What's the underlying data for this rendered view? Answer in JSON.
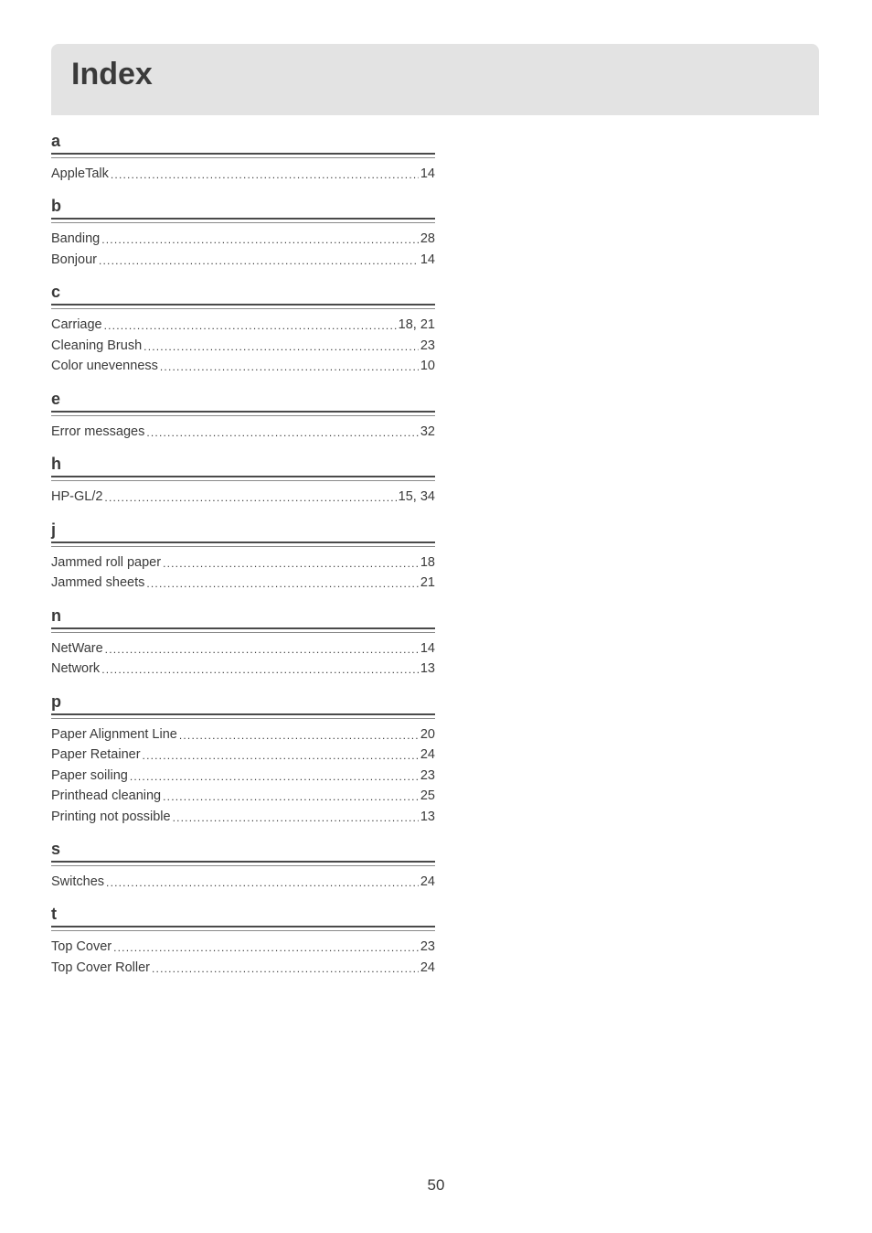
{
  "title": "Index",
  "page_number": "50",
  "sections": [
    {
      "letter": "a",
      "entries": [
        {
          "term": "AppleTalk",
          "pages": "14"
        }
      ]
    },
    {
      "letter": "b",
      "entries": [
        {
          "term": "Banding",
          "pages": "28"
        },
        {
          "term": "Bonjour",
          "pages": "14"
        }
      ]
    },
    {
      "letter": "c",
      "entries": [
        {
          "term": "Carriage",
          "pages": "18, 21"
        },
        {
          "term": "Cleaning Brush",
          "pages": "23"
        },
        {
          "term": "Color unevenness",
          "pages": "10"
        }
      ]
    },
    {
      "letter": "e",
      "entries": [
        {
          "term": "Error messages",
          "pages": "32"
        }
      ]
    },
    {
      "letter": "h",
      "entries": [
        {
          "term": "HP-GL/2",
          "pages": "15, 34"
        }
      ]
    },
    {
      "letter": "j",
      "entries": [
        {
          "term": "Jammed roll paper",
          "pages": "18"
        },
        {
          "term": "Jammed sheets",
          "pages": "21"
        }
      ]
    },
    {
      "letter": "n",
      "entries": [
        {
          "term": "NetWare",
          "pages": "14"
        },
        {
          "term": "Network",
          "pages": "13"
        }
      ]
    },
    {
      "letter": "p",
      "entries": [
        {
          "term": "Paper Alignment Line",
          "pages": "20"
        },
        {
          "term": "Paper Retainer",
          "pages": "24"
        },
        {
          "term": "Paper soiling",
          "pages": "23"
        },
        {
          "term": "Printhead cleaning",
          "pages": "25"
        },
        {
          "term": "Printing not possible",
          "pages": "13"
        }
      ]
    },
    {
      "letter": "s",
      "entries": [
        {
          "term": "Switches",
          "pages": "24"
        }
      ]
    },
    {
      "letter": "t",
      "entries": [
        {
          "term": "Top Cover",
          "pages": "23"
        },
        {
          "term": "Top Cover Roller",
          "pages": "24"
        }
      ]
    }
  ]
}
